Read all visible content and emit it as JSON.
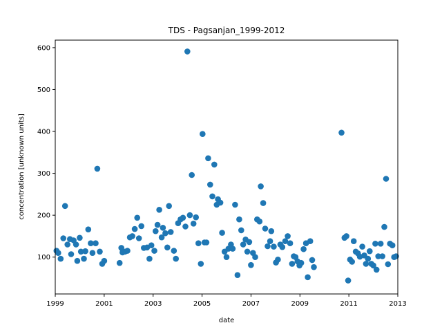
{
  "chart_data": {
    "type": "scatter",
    "title": "TDS - Pagsanjan_1999-2012",
    "xlabel": "date",
    "ylabel": "concentration [unknown units]",
    "xlim": [
      1999.0,
      2013.0
    ],
    "ylim": [
      12,
      618
    ],
    "x_ticks": [
      1999,
      2001,
      2003,
      2005,
      2007,
      2009,
      2011,
      2013
    ],
    "x_tick_labels": [
      "1999",
      "2001",
      "2003",
      "2005",
      "2007",
      "2009",
      "2011",
      "2013"
    ],
    "y_ticks": [
      100,
      200,
      300,
      400,
      500,
      600
    ],
    "y_tick_labels": [
      "100",
      "200",
      "300",
      "400",
      "500",
      "600"
    ],
    "marker_color": "#1f77b4",
    "grid": false,
    "series": [
      {
        "points": [
          [
            1999.05,
            115
          ],
          [
            1999.12,
            110
          ],
          [
            1999.22,
            96
          ],
          [
            1999.33,
            145
          ],
          [
            1999.4,
            222
          ],
          [
            1999.5,
            130
          ],
          [
            1999.6,
            143
          ],
          [
            1999.65,
            107
          ],
          [
            1999.75,
            140
          ],
          [
            1999.85,
            130
          ],
          [
            1999.9,
            91
          ],
          [
            2000.0,
            146
          ],
          [
            2000.05,
            113
          ],
          [
            2000.17,
            96
          ],
          [
            2000.23,
            114
          ],
          [
            2000.35,
            166
          ],
          [
            2000.45,
            133
          ],
          [
            2000.52,
            110
          ],
          [
            2000.65,
            133
          ],
          [
            2000.72,
            311
          ],
          [
            2000.82,
            113
          ],
          [
            2000.92,
            84
          ],
          [
            2001.0,
            91
          ],
          [
            2001.63,
            86
          ],
          [
            2001.7,
            122
          ],
          [
            2001.75,
            111
          ],
          [
            2001.85,
            113
          ],
          [
            2001.95,
            115
          ],
          [
            2002.05,
            147
          ],
          [
            2002.15,
            150
          ],
          [
            2002.25,
            167
          ],
          [
            2002.35,
            194
          ],
          [
            2002.42,
            145
          ],
          [
            2002.52,
            174
          ],
          [
            2002.62,
            122
          ],
          [
            2002.75,
            123
          ],
          [
            2002.85,
            96
          ],
          [
            2002.93,
            128
          ],
          [
            2003.05,
            115
          ],
          [
            2003.1,
            162
          ],
          [
            2003.18,
            177
          ],
          [
            2003.25,
            213
          ],
          [
            2003.35,
            147
          ],
          [
            2003.4,
            170
          ],
          [
            2003.5,
            157
          ],
          [
            2003.58,
            123
          ],
          [
            2003.65,
            222
          ],
          [
            2003.72,
            160
          ],
          [
            2003.85,
            115
          ],
          [
            2003.93,
            96
          ],
          [
            2004.02,
            181
          ],
          [
            2004.12,
            190
          ],
          [
            2004.22,
            194
          ],
          [
            2004.32,
            173
          ],
          [
            2004.4,
            591
          ],
          [
            2004.5,
            200
          ],
          [
            2004.58,
            296
          ],
          [
            2004.65,
            180
          ],
          [
            2004.75,
            195
          ],
          [
            2004.85,
            133
          ],
          [
            2004.95,
            84
          ],
          [
            2005.02,
            394
          ],
          [
            2005.1,
            135
          ],
          [
            2005.18,
            135
          ],
          [
            2005.25,
            336
          ],
          [
            2005.33,
            273
          ],
          [
            2005.42,
            245
          ],
          [
            2005.5,
            321
          ],
          [
            2005.6,
            225
          ],
          [
            2005.65,
            238
          ],
          [
            2005.75,
            230
          ],
          [
            2005.82,
            158
          ],
          [
            2005.92,
            113
          ],
          [
            2006.0,
            100
          ],
          [
            2006.08,
            120
          ],
          [
            2006.18,
            130
          ],
          [
            2006.25,
            120
          ],
          [
            2006.35,
            225
          ],
          [
            2006.45,
            57
          ],
          [
            2006.52,
            190
          ],
          [
            2006.6,
            164
          ],
          [
            2006.68,
            130
          ],
          [
            2006.78,
            142
          ],
          [
            2006.85,
            113
          ],
          [
            2006.93,
            136
          ],
          [
            2007.0,
            81
          ],
          [
            2007.08,
            110
          ],
          [
            2007.17,
            100
          ],
          [
            2007.25,
            190
          ],
          [
            2007.35,
            185
          ],
          [
            2007.4,
            269
          ],
          [
            2007.5,
            229
          ],
          [
            2007.58,
            168
          ],
          [
            2007.68,
            126
          ],
          [
            2007.78,
            138
          ],
          [
            2007.83,
            162
          ],
          [
            2007.93,
            125
          ],
          [
            2008.02,
            87
          ],
          [
            2008.1,
            94
          ],
          [
            2008.2,
            130
          ],
          [
            2008.28,
            124
          ],
          [
            2008.4,
            138
          ],
          [
            2008.5,
            150
          ],
          [
            2008.6,
            133
          ],
          [
            2008.68,
            84
          ],
          [
            2008.75,
            102
          ],
          [
            2008.82,
            100
          ],
          [
            2008.9,
            90
          ],
          [
            2008.98,
            80
          ],
          [
            2009.05,
            86
          ],
          [
            2009.15,
            119
          ],
          [
            2009.25,
            133
          ],
          [
            2009.32,
            52
          ],
          [
            2009.42,
            138
          ],
          [
            2009.5,
            93
          ],
          [
            2009.57,
            76
          ],
          [
            2010.7,
            397
          ],
          [
            2010.82,
            146
          ],
          [
            2010.9,
            150
          ],
          [
            2010.97,
            44
          ],
          [
            2011.05,
            94
          ],
          [
            2011.13,
            89
          ],
          [
            2011.2,
            138
          ],
          [
            2011.28,
            113
          ],
          [
            2011.37,
            109
          ],
          [
            2011.45,
            101
          ],
          [
            2011.55,
            125
          ],
          [
            2011.63,
            104
          ],
          [
            2011.7,
            84
          ],
          [
            2011.78,
            96
          ],
          [
            2011.85,
            114
          ],
          [
            2011.92,
            84
          ],
          [
            2012.0,
            80
          ],
          [
            2012.08,
            132
          ],
          [
            2012.13,
            70
          ],
          [
            2012.2,
            102
          ],
          [
            2012.3,
            132
          ],
          [
            2012.37,
            102
          ],
          [
            2012.45,
            172
          ],
          [
            2012.52,
            287
          ],
          [
            2012.6,
            83
          ],
          [
            2012.68,
            132
          ],
          [
            2012.78,
            128
          ],
          [
            2012.85,
            100
          ],
          [
            2012.93,
            102
          ]
        ]
      }
    ]
  }
}
